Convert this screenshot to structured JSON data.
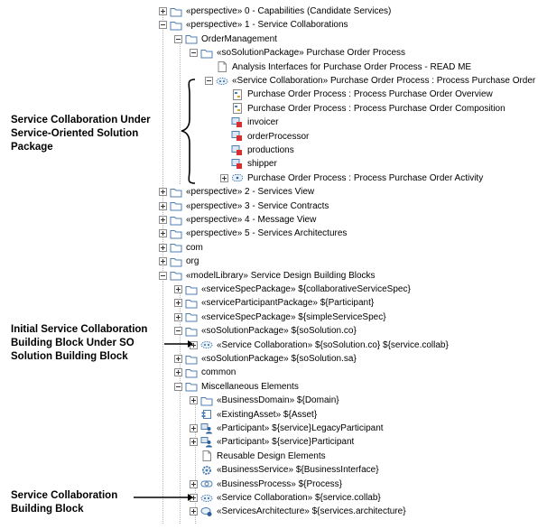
{
  "tree": [
    {
      "label": "«perspective» 0 - Capabilities (Candidate Services)",
      "icon": "folder-icon",
      "exp": "plus",
      "depth": 0
    },
    {
      "label": "«perspective» 1 - Service Collaborations",
      "icon": "folder-icon",
      "exp": "minus",
      "depth": 0
    },
    {
      "label": "OrderManagement",
      "icon": "folder-icon",
      "exp": "minus",
      "depth": 1
    },
    {
      "label": "«soSolutionPackage» Purchase Order Process",
      "icon": "folder-icon",
      "exp": "minus",
      "depth": 2
    },
    {
      "label": "Analysis Interfaces for Purchase Order Process - READ ME",
      "icon": "document-icon",
      "exp": "none",
      "depth": 3
    },
    {
      "label": "«Service Collaboration» Purchase Order Process : Process Purchase Order",
      "icon": "collaboration-icon",
      "exp": "minus",
      "depth": 3
    },
    {
      "label": "Purchase Order Process : Process Purchase Order Overview",
      "icon": "diagram-icon",
      "exp": "none",
      "depth": 4
    },
    {
      "label": "Purchase Order Process : Process Purchase Order Composition",
      "icon": "diagram-icon",
      "exp": "none",
      "depth": 4
    },
    {
      "label": "invoicer",
      "icon": "part-icon",
      "exp": "none",
      "depth": 4
    },
    {
      "label": "orderProcessor",
      "icon": "part-icon",
      "exp": "none",
      "depth": 4
    },
    {
      "label": "productions",
      "icon": "part-icon",
      "exp": "none",
      "depth": 4
    },
    {
      "label": "shipper",
      "icon": "part-icon",
      "exp": "none",
      "depth": 4
    },
    {
      "label": "Purchase Order Process : Process Purchase Order Activity",
      "icon": "activity-icon",
      "exp": "plus",
      "depth": 4
    },
    {
      "label": "«perspective» 2 - Services View",
      "icon": "folder-icon",
      "exp": "plus",
      "depth": 0
    },
    {
      "label": "«perspective» 3 - Service Contracts",
      "icon": "folder-icon",
      "exp": "plus",
      "depth": 0
    },
    {
      "label": "«perspective» 4 - Message View",
      "icon": "folder-icon",
      "exp": "plus",
      "depth": 0
    },
    {
      "label": "«perspective» 5 - Services Architectures",
      "icon": "folder-icon",
      "exp": "plus",
      "depth": 0
    },
    {
      "label": "com",
      "icon": "folder-icon",
      "exp": "plus",
      "depth": 0
    },
    {
      "label": "org",
      "icon": "folder-icon",
      "exp": "plus",
      "depth": 0
    },
    {
      "label": "«modelLibrary» Service Design Building Blocks",
      "icon": "folder-icon",
      "exp": "minus",
      "depth": 0
    },
    {
      "label": "«serviceSpecPackage» ${collaborativeServiceSpec}",
      "icon": "folder-icon",
      "exp": "plus",
      "depth": 1
    },
    {
      "label": "«serviceParticipantPackage» ${Participant}",
      "icon": "folder-icon",
      "exp": "plus",
      "depth": 1
    },
    {
      "label": "«serviceSpecPackage» ${simpleServiceSpec}",
      "icon": "folder-icon",
      "exp": "plus",
      "depth": 1
    },
    {
      "label": "«soSolutionPackage» ${soSolution.co}",
      "icon": "folder-icon",
      "exp": "minus",
      "depth": 1
    },
    {
      "label": "«Service Collaboration» ${soSolution.co} ${service.collab}",
      "icon": "collaboration-icon",
      "exp": "plus",
      "depth": 2
    },
    {
      "label": "«soSolutionPackage» ${soSolution.sa}",
      "icon": "folder-icon",
      "exp": "plus",
      "depth": 1
    },
    {
      "label": "common",
      "icon": "folder-icon",
      "exp": "plus",
      "depth": 1
    },
    {
      "label": "Miscellaneous Elements",
      "icon": "folder-icon",
      "exp": "minus",
      "depth": 1
    },
    {
      "label": "«BusinessDomain» ${Domain}",
      "icon": "folder-icon",
      "exp": "plus",
      "depth": 2
    },
    {
      "label": "«ExistingAsset» ${Asset}",
      "icon": "asset-icon",
      "exp": "none",
      "depth": 2
    },
    {
      "label": "«Participant» ${service}LegacyParticipant",
      "icon": "participant-icon",
      "exp": "plus",
      "depth": 2
    },
    {
      "label": "«Participant» ${service}Participant",
      "icon": "participant-icon",
      "exp": "plus",
      "depth": 2
    },
    {
      "label": "Reusable Design Elements",
      "icon": "document-icon",
      "exp": "none",
      "depth": 2
    },
    {
      "label": "«BusinessService» ${BusinessInterface}",
      "icon": "gear-icon",
      "exp": "none",
      "depth": 2
    },
    {
      "label": "«BusinessProcess» ${Process}",
      "icon": "process-icon",
      "exp": "plus",
      "depth": 2
    },
    {
      "label": "«Service Collaboration» ${service.collab}",
      "icon": "collaboration-icon",
      "exp": "plus",
      "depth": 2
    },
    {
      "label": "«ServicesArchitecture» ${services.architecture}",
      "icon": "architecture-icon",
      "exp": "plus",
      "depth": 2
    }
  ],
  "annotations": {
    "collab_under_solution": [
      "Service Collaboration Under",
      "Service-Oriented Solution",
      "Package"
    ],
    "initial_collab_block": [
      "Initial Service Collaboration",
      "Building Block Under SO",
      "Solution Building Block"
    ],
    "collab_block": [
      "Service Collaboration",
      "Building Block"
    ]
  },
  "colors": {
    "folder": "#4f7fb0",
    "accent": "#2f5f9a",
    "part_red": "#d83030",
    "expander": "#8c8c8c"
  }
}
